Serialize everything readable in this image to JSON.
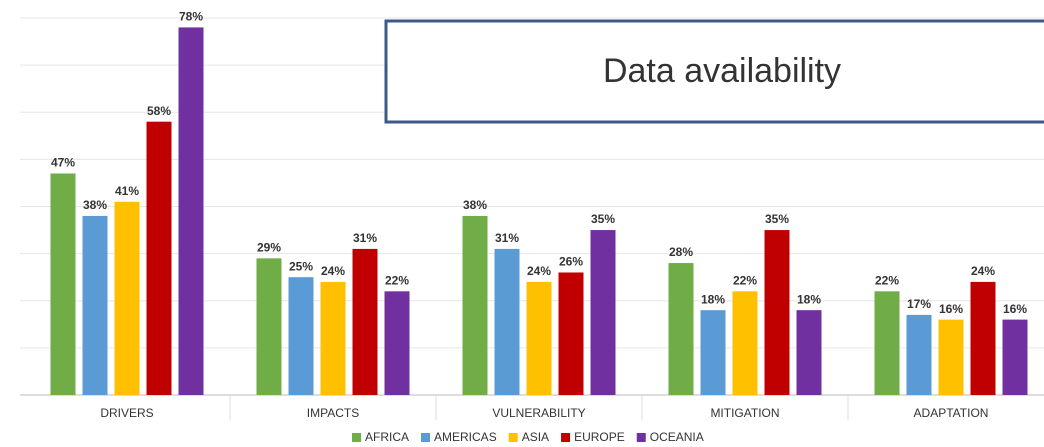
{
  "chart_data": {
    "type": "bar",
    "annotation": "Data availability",
    "categories": [
      "DRIVERS",
      "IMPACTS",
      "VULNERABILITY",
      "MITIGATION",
      "ADAPTATION"
    ],
    "series": [
      {
        "name": "AFRICA",
        "color": "#70ad47",
        "values": [
          47,
          29,
          38,
          28,
          22
        ],
        "value_labels": [
          "47%",
          "29%",
          "38%",
          "28%",
          "22%"
        ]
      },
      {
        "name": "AMERICAS",
        "color": "#5b9bd5",
        "values": [
          38,
          25,
          31,
          18,
          17
        ],
        "value_labels": [
          "38%",
          "25%",
          "31%",
          "18%",
          "17%"
        ]
      },
      {
        "name": "ASIA",
        "color": "#ffc000",
        "values": [
          41,
          24,
          24,
          22,
          16
        ],
        "value_labels": [
          "41%",
          "24%",
          "24%",
          "22%",
          "16%"
        ]
      },
      {
        "name": "EUROPE",
        "color": "#c00000",
        "values": [
          58,
          31,
          26,
          35,
          24
        ],
        "value_labels": [
          "58%",
          "31%",
          "26%",
          "35%",
          "24%"
        ]
      },
      {
        "name": "OCEANIA",
        "color": "#7030a0",
        "values": [
          78,
          22,
          35,
          18,
          16
        ],
        "value_labels": [
          "78%",
          "22%",
          "35%",
          "18%",
          "16%"
        ]
      }
    ],
    "ylim": [
      0,
      80
    ],
    "yticks": [
      0,
      10,
      20,
      30,
      40,
      50,
      60,
      70,
      80
    ],
    "grid": true,
    "legend": "bottom"
  }
}
